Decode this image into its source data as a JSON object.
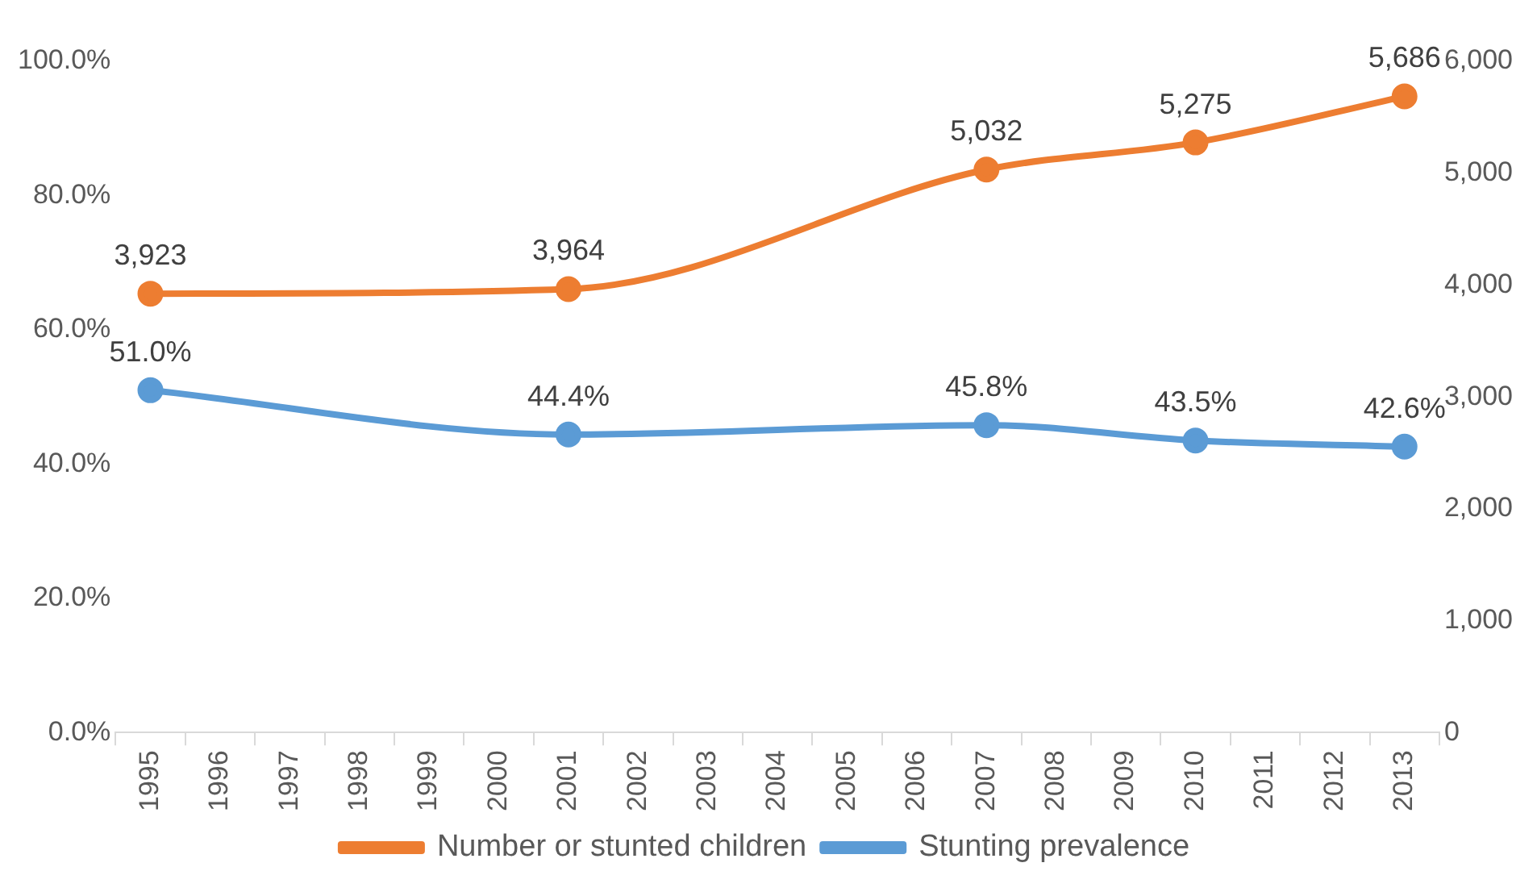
{
  "chart_data": {
    "type": "line",
    "categories": [
      "1995",
      "1996",
      "1997",
      "1998",
      "1999",
      "2000",
      "2001",
      "2002",
      "2003",
      "2004",
      "2005",
      "2006",
      "2007",
      "2008",
      "2009",
      "2010",
      "2011",
      "2012",
      "2013"
    ],
    "series": [
      {
        "name": "Number or stunted children",
        "color": "#ed7d31",
        "axis": "y2",
        "values": [
          3923,
          null,
          null,
          null,
          null,
          null,
          3964,
          null,
          null,
          null,
          null,
          null,
          5032,
          null,
          null,
          5275,
          null,
          null,
          5686
        ],
        "value_labels": [
          "3,923",
          null,
          null,
          null,
          null,
          null,
          "3,964",
          null,
          null,
          null,
          null,
          null,
          "5,032",
          null,
          null,
          "5,275",
          null,
          null,
          "5,686"
        ]
      },
      {
        "name": "Stunting prevalence",
        "color": "#5b9bd5",
        "axis": "y",
        "values": [
          51.0,
          null,
          null,
          null,
          null,
          null,
          44.4,
          null,
          null,
          null,
          null,
          null,
          45.8,
          null,
          null,
          43.5,
          null,
          null,
          42.6
        ],
        "value_labels": [
          "51.0%",
          null,
          null,
          null,
          null,
          null,
          "44.4%",
          null,
          null,
          null,
          null,
          null,
          "45.8%",
          null,
          null,
          "43.5%",
          null,
          null,
          "42.6%"
        ]
      }
    ],
    "ylim": [
      0,
      100
    ],
    "yticks": [
      {
        "value": 0,
        "label": "0.0%"
      },
      {
        "value": 20,
        "label": "20.0%"
      },
      {
        "value": 40,
        "label": "40.0%"
      },
      {
        "value": 60,
        "label": "60.0%"
      },
      {
        "value": 80,
        "label": "80.0%"
      },
      {
        "value": 100,
        "label": "100.0%"
      }
    ],
    "y2lim": [
      0,
      6000
    ],
    "y2ticks": [
      0,
      {
        "value": 1000,
        "label": "1,000"
      },
      {
        "value": 2000,
        "label": "2,000"
      },
      {
        "value": 3000,
        "label": "3,000"
      },
      {
        "value": 4000,
        "label": "4,000"
      },
      {
        "value": 5000,
        "label": "5,000"
      },
      {
        "value": 6000,
        "label": "6,000"
      }
    ],
    "grid": false,
    "legend": "bottom",
    "marker": "circle",
    "line_style": "solid"
  }
}
